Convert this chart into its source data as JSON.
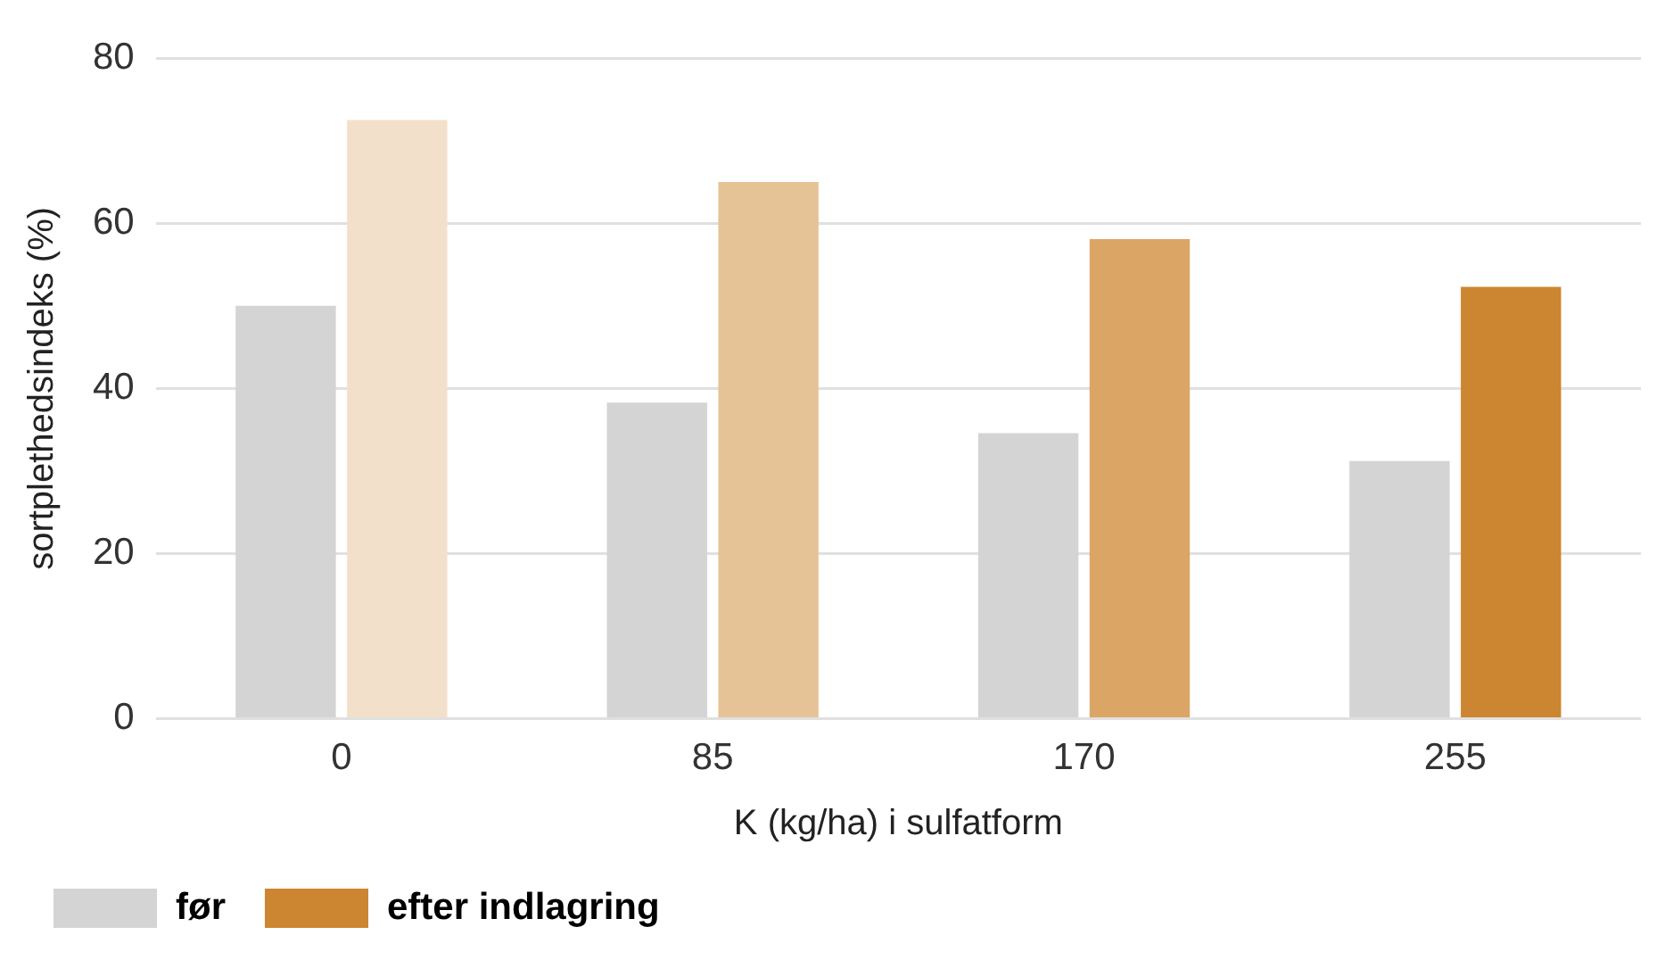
{
  "chart_data": {
    "type": "bar",
    "xlabel": "K (kg/ha) i sulfatform",
    "ylabel": "sortplethedsindeks (%)",
    "categories": [
      "0",
      "85",
      "170",
      "255"
    ],
    "series": [
      {
        "name": "før",
        "color": "#d4d4d4",
        "values": [
          50,
          38.3,
          34.6,
          31.2
        ]
      },
      {
        "name": "efter indlagring",
        "color": "#cc8530",
        "colors": [
          "#f3e0cb",
          "#e6c396",
          "#dba566",
          "#cc8530"
        ],
        "values": [
          72.5,
          65,
          58.1,
          52.3
        ]
      }
    ],
    "ylim": [
      0,
      80
    ],
    "yticks": [
      0,
      20,
      40,
      60,
      80
    ],
    "grid": "y",
    "legend": "bottom left"
  }
}
